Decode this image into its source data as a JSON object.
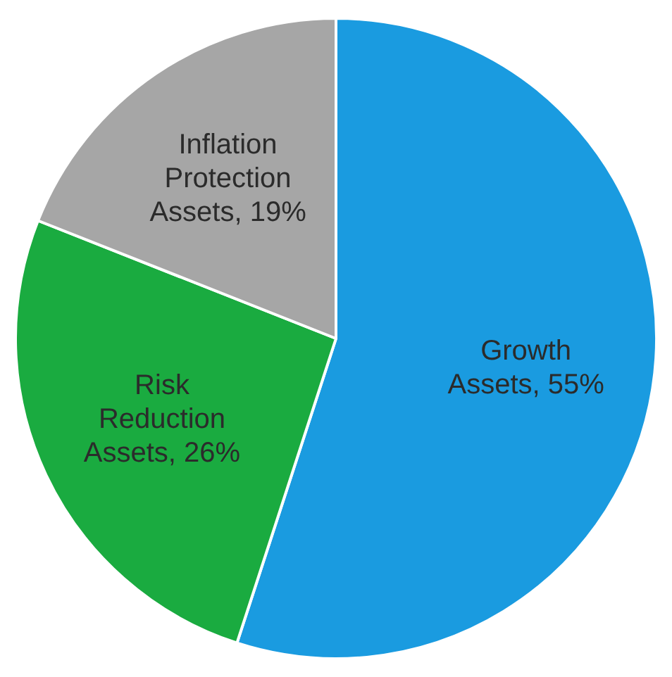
{
  "chart_data": {
    "type": "pie",
    "categories": [
      "Growth Assets",
      "Risk Reduction Assets",
      "Inflation Protection Assets"
    ],
    "values": [
      55,
      26,
      19
    ],
    "value_labels": [
      "55%",
      "26%",
      "19%"
    ],
    "colors": [
      "#1a9be0",
      "#1aab40",
      "#a6a6a6"
    ],
    "legend": false
  }
}
